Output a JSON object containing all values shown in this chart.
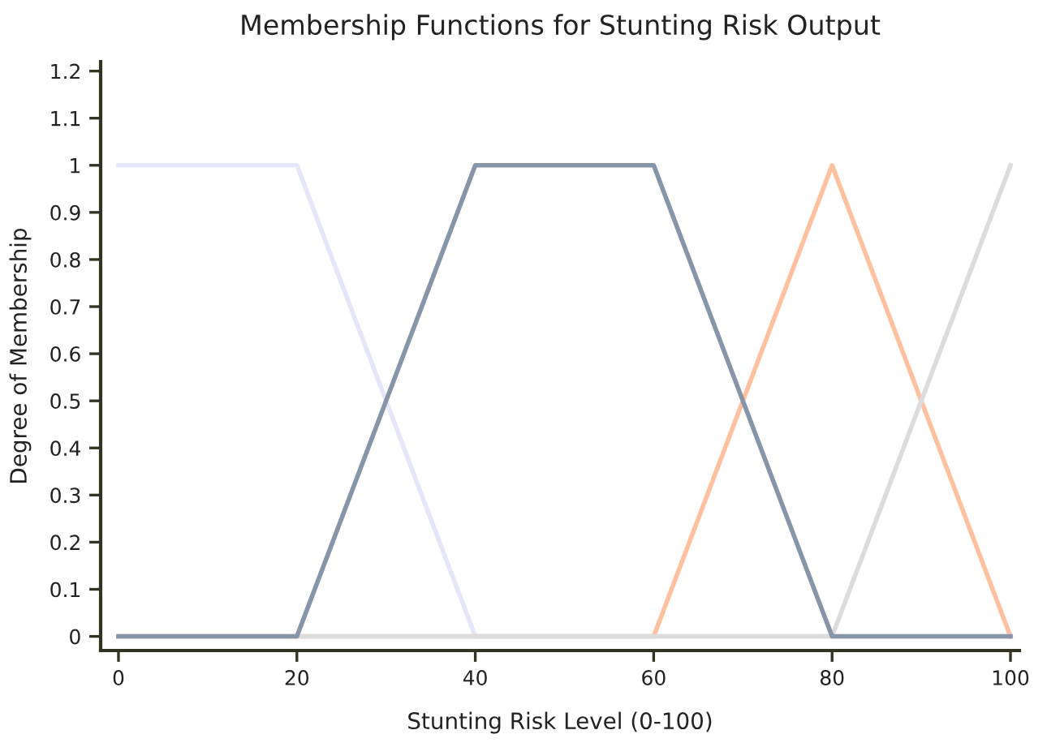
{
  "chart_data": {
    "type": "line",
    "title": "Membership Functions for Stunting Risk Output",
    "xlabel": "Stunting Risk Level (0-100)",
    "ylabel": "Degree of Membership",
    "series": [
      {
        "color": "#e6e6fa",
        "x": [
          0,
          20,
          40,
          100
        ],
        "values": [
          1,
          1,
          0,
          0
        ]
      },
      {
        "color": "#ffc0a0",
        "x": [
          0,
          60,
          80,
          100
        ],
        "values": [
          0,
          0,
          1,
          0
        ]
      },
      {
        "color": "#dcdcdc",
        "x": [
          0,
          80,
          100
        ],
        "values": [
          0,
          0,
          1
        ]
      },
      {
        "color": "#8795aa",
        "x": [
          0,
          20,
          40,
          60,
          80,
          100
        ],
        "values": [
          0,
          0,
          1,
          1,
          0,
          0
        ]
      }
    ],
    "xlim": [
      -2,
      101
    ],
    "ylim": [
      -0.03,
      1.22
    ],
    "xticks": [
      0,
      20,
      40,
      60,
      80,
      100
    ],
    "yticks": [
      0,
      0.1,
      0.2,
      0.3,
      0.4,
      0.5,
      0.6,
      0.7,
      0.8,
      0.9,
      1,
      1.1,
      1.2
    ],
    "grid": false,
    "marker": "none",
    "line_style": "solid"
  }
}
